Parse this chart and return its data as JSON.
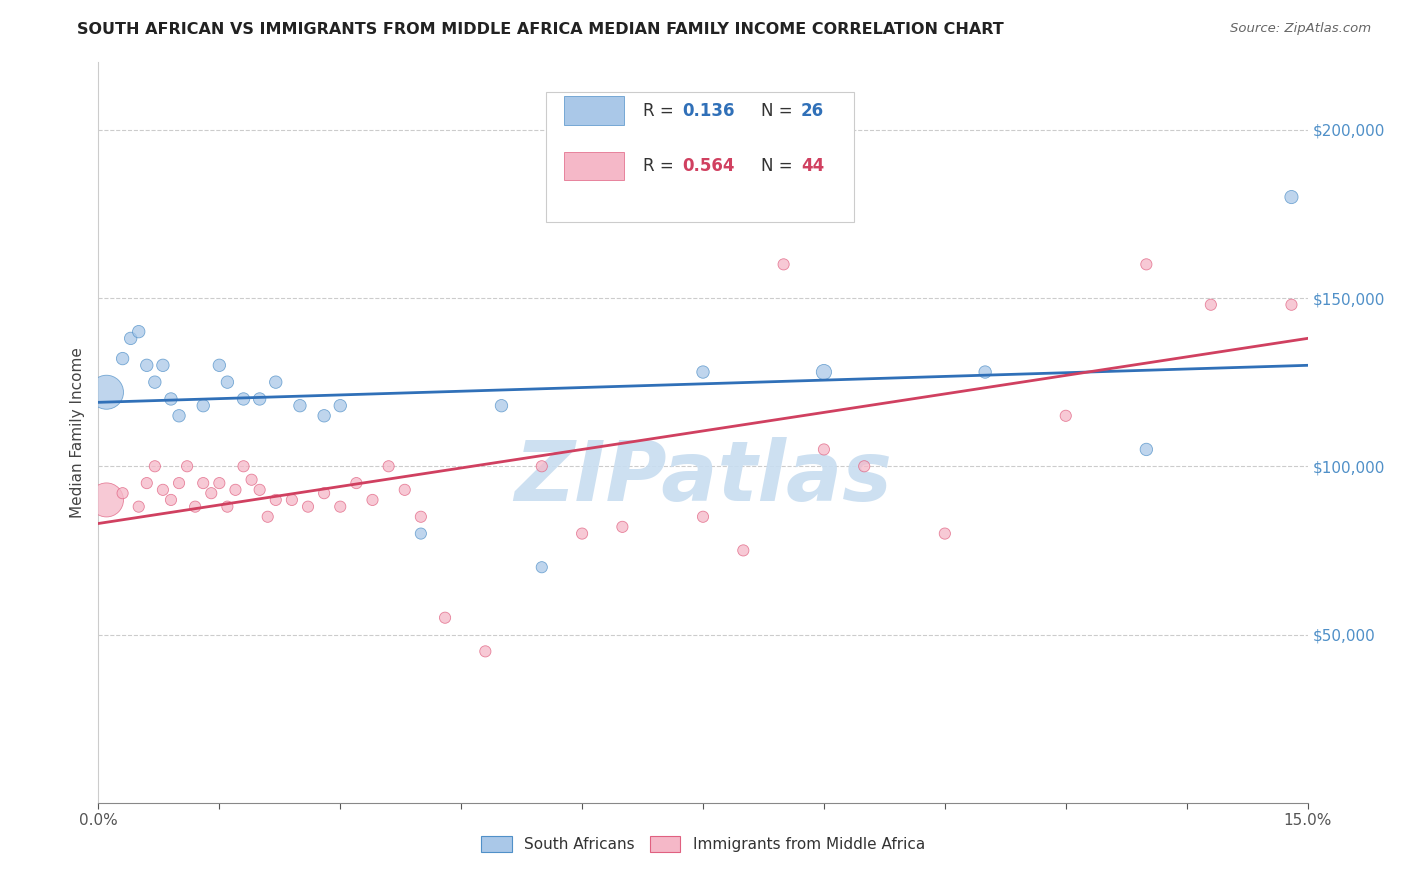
{
  "title": "SOUTH AFRICAN VS IMMIGRANTS FROM MIDDLE AFRICA MEDIAN FAMILY INCOME CORRELATION CHART",
  "source": "Source: ZipAtlas.com",
  "ylabel": "Median Family Income",
  "xlim": [
    0,
    0.15
  ],
  "ylim": [
    0,
    220000
  ],
  "xtick_positions": [
    0.0,
    0.015,
    0.03,
    0.045,
    0.06,
    0.075,
    0.09,
    0.105,
    0.12,
    0.135,
    0.15
  ],
  "xtick_labels": [
    "0.0%",
    "",
    "",
    "",
    "",
    "",
    "",
    "",
    "",
    "",
    "15.0%"
  ],
  "yticks_right": [
    50000,
    100000,
    150000,
    200000
  ],
  "ytick_labels_right": [
    "$50,000",
    "$100,000",
    "$150,000",
    "$200,000"
  ],
  "blue_R": 0.136,
  "blue_N": 26,
  "pink_R": 0.564,
  "pink_N": 44,
  "blue_fill_color": "#aac8e8",
  "pink_fill_color": "#f5b8c8",
  "blue_edge_color": "#5090c8",
  "pink_edge_color": "#e06080",
  "blue_line_color": "#3070b8",
  "pink_line_color": "#d04060",
  "right_axis_color": "#5090c8",
  "watermark_text": "ZIPatlas",
  "watermark_color": "#c8ddf0",
  "legend_label_blue": "South Africans",
  "legend_label_pink": "Immigrants from Middle Africa",
  "blue_scatter_x": [
    0.001,
    0.003,
    0.004,
    0.005,
    0.006,
    0.007,
    0.008,
    0.009,
    0.01,
    0.013,
    0.015,
    0.016,
    0.018,
    0.02,
    0.022,
    0.025,
    0.028,
    0.03,
    0.04,
    0.05,
    0.055,
    0.075,
    0.09,
    0.11,
    0.13,
    0.148
  ],
  "blue_scatter_y": [
    122000,
    132000,
    138000,
    140000,
    130000,
    125000,
    130000,
    120000,
    115000,
    118000,
    130000,
    125000,
    120000,
    120000,
    125000,
    118000,
    115000,
    118000,
    80000,
    118000,
    70000,
    128000,
    128000,
    128000,
    105000,
    180000
  ],
  "blue_scatter_size": [
    600,
    80,
    80,
    80,
    80,
    80,
    80,
    80,
    80,
    80,
    80,
    80,
    80,
    80,
    80,
    80,
    80,
    80,
    65,
    80,
    65,
    80,
    120,
    80,
    80,
    90
  ],
  "pink_scatter_x": [
    0.001,
    0.003,
    0.005,
    0.006,
    0.007,
    0.008,
    0.009,
    0.01,
    0.011,
    0.012,
    0.013,
    0.014,
    0.015,
    0.016,
    0.017,
    0.018,
    0.019,
    0.02,
    0.021,
    0.022,
    0.024,
    0.026,
    0.028,
    0.03,
    0.032,
    0.034,
    0.036,
    0.038,
    0.04,
    0.043,
    0.048,
    0.055,
    0.06,
    0.065,
    0.075,
    0.08,
    0.085,
    0.09,
    0.095,
    0.105,
    0.12,
    0.13,
    0.138,
    0.148
  ],
  "pink_scatter_y": [
    90000,
    92000,
    88000,
    95000,
    100000,
    93000,
    90000,
    95000,
    100000,
    88000,
    95000,
    92000,
    95000,
    88000,
    93000,
    100000,
    96000,
    93000,
    85000,
    90000,
    90000,
    88000,
    92000,
    88000,
    95000,
    90000,
    100000,
    93000,
    85000,
    55000,
    45000,
    100000,
    80000,
    82000,
    85000,
    75000,
    160000,
    105000,
    100000,
    80000,
    115000,
    160000,
    148000,
    148000
  ],
  "pink_scatter_size": [
    600,
    65,
    65,
    65,
    65,
    65,
    65,
    65,
    65,
    65,
    65,
    65,
    65,
    65,
    65,
    65,
    65,
    65,
    65,
    65,
    65,
    65,
    65,
    65,
    65,
    65,
    65,
    65,
    65,
    65,
    65,
    65,
    65,
    65,
    65,
    65,
    65,
    65,
    65,
    65,
    65,
    65,
    65,
    65
  ]
}
